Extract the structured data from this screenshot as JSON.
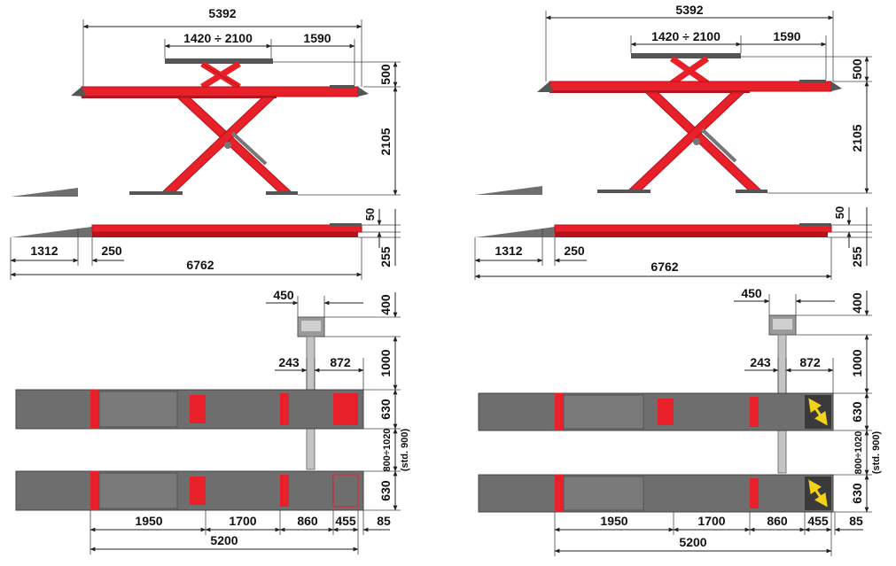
{
  "colors": {
    "lift_red": "#e8202a",
    "lift_dark_red": "#b5121b",
    "runway_grey": "#6e6e6e",
    "runway_dark": "#555555",
    "column_grey": "#9a9a9a",
    "plate_yellow": "#f2d21b",
    "dimension_line": "#222222"
  },
  "icons": {
    "control_console": "control-console-icon",
    "sliding_plate_arrows": "diagonal-arrows-icon"
  },
  "views": [
    {
      "id": "left",
      "variant": "with-red-turntable-plate",
      "dims": {
        "top_length": "5392",
        "wheelbase_range": "1420 ÷ 2100",
        "overhang": "1590",
        "platform_rise": "500",
        "max_height": "2105",
        "ramp_length": "1312",
        "ramp_gap": "250",
        "total_length": "6762",
        "top_plate_thickness": "50",
        "min_height": "255",
        "console_width": "450",
        "console_depth": "400",
        "column_offset": "243",
        "column_to_end": "872",
        "console_clearance": "1000",
        "runway_width_top": "630",
        "runway_spacing": "800÷1020",
        "runway_spacing_std": "(std. 900)",
        "runway_width_bottom": "630",
        "seg_1": "1950",
        "seg_2": "1700",
        "seg_3": "860",
        "seg_4": "455",
        "end_gap": "85",
        "runway_length": "5200"
      }
    },
    {
      "id": "right",
      "variant": "with-sliding-plate",
      "dims": {
        "top_length": "5392",
        "wheelbase_range": "1420 ÷ 2100",
        "overhang": "1590",
        "platform_rise": "500",
        "max_height": "2105",
        "ramp_length": "1312",
        "ramp_gap": "250",
        "total_length": "6762",
        "top_plate_thickness": "50",
        "min_height": "255",
        "console_width": "450",
        "console_depth": "400",
        "column_offset": "243",
        "column_to_end": "872",
        "console_clearance": "1000",
        "runway_width_top": "630",
        "runway_spacing": "800÷1020",
        "runway_spacing_std": "(std. 900)",
        "runway_width_bottom": "630",
        "seg_1": "1950",
        "seg_2": "1700",
        "seg_3": "860",
        "seg_4": "455",
        "end_gap": "85",
        "runway_length": "5200"
      }
    }
  ]
}
